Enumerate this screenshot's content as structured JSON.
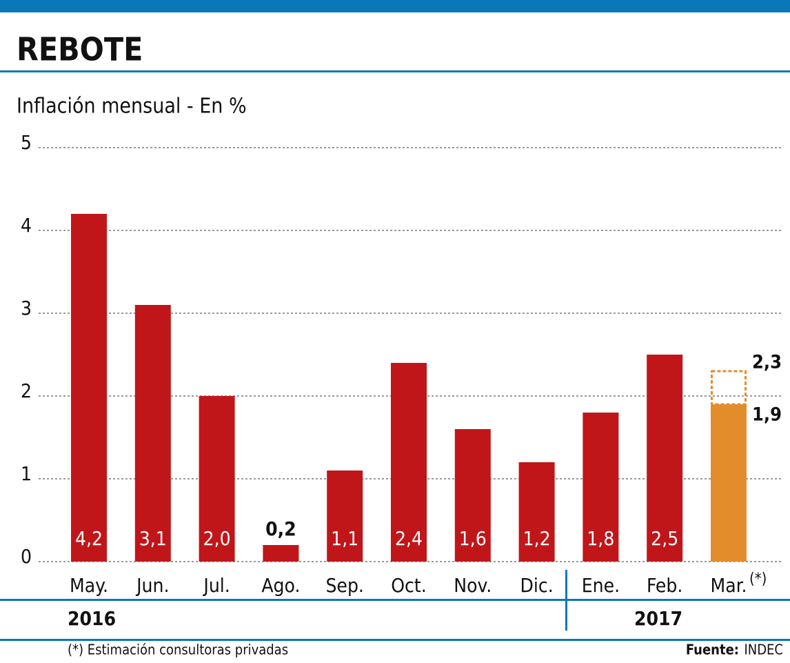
{
  "chart_data": {
    "type": "bar",
    "title": "REBOTE",
    "subtitle": "Inflación mensual - En %",
    "categories": [
      "May.",
      "Jun.",
      "Jul.",
      "Ago.",
      "Sep.",
      "Oct.",
      "Nov.",
      "Dic.",
      "Ene.",
      "Feb.",
      "Mar."
    ],
    "values": [
      4.2,
      3.1,
      2.0,
      0.2,
      1.1,
      2.4,
      1.6,
      1.2,
      1.8,
      2.5,
      1.9
    ],
    "value_labels": [
      "4,2",
      "3,1",
      "2,0",
      "0,2",
      "1,1",
      "2,4",
      "1,6",
      "1,2",
      "1,8",
      "2,5",
      "1,9"
    ],
    "color": "#c0161a",
    "estimate_color": "#e38c2c",
    "estimate": {
      "value": 2.3,
      "label": "2,3",
      "marker": "(*)"
    },
    "ylim": [
      0,
      5
    ],
    "yticks": [
      0,
      1,
      2,
      3,
      4,
      5
    ],
    "grid": true,
    "year_groups": [
      "2016",
      "2017"
    ],
    "footnote": "(*) Estimación consultoras privadas",
    "source_label": "Fuente:",
    "source": "INDEC"
  }
}
